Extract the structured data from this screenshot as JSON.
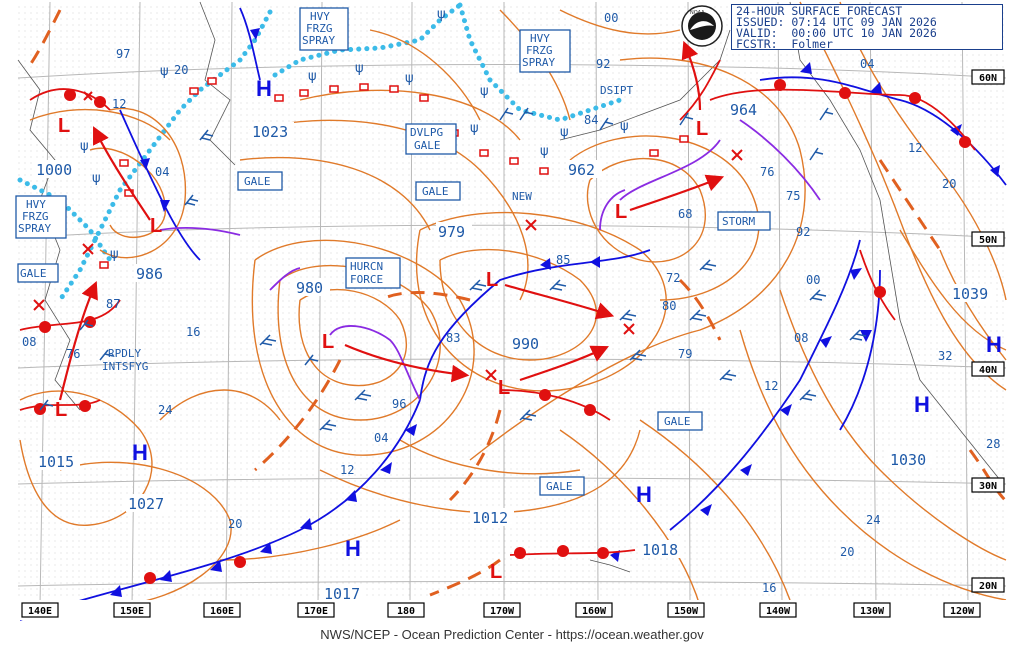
{
  "header": {
    "title": "24-HOUR SURFACE FORECAST",
    "issued": "ISSUED: 07:14 UTC 09 JAN 2026",
    "valid": "VALID:  00:00 UTC 10 JAN 2026",
    "forecaster": "FCSTR:  Folmer"
  },
  "footer": "NWS/NCEP - Ocean Prediction Center - https://ocean.weather.gov",
  "logo_text": "NOAA",
  "lon_ticks": [
    "140E",
    "150E",
    "160E",
    "170E",
    "180",
    "170W",
    "160W",
    "150W",
    "140W",
    "130W",
    "120W"
  ],
  "lat_ticks": [
    "60N",
    "50N",
    "40N",
    "30N",
    "20N"
  ],
  "highs": [
    {
      "letter": "H",
      "pressure": "1023"
    },
    {
      "letter": "H",
      "pressure": "1015"
    },
    {
      "letter": "H",
      "pressure": "1027"
    },
    {
      "letter": "H",
      "pressure": "1017"
    },
    {
      "letter": "H",
      "pressure": "1012"
    },
    {
      "letter": "H",
      "pressure": "1018"
    },
    {
      "letter": "H",
      "pressure": "1030"
    },
    {
      "letter": "H",
      "pressure": "1039"
    }
  ],
  "lows": [
    {
      "letter": "L",
      "pressure": "1000"
    },
    {
      "letter": "L",
      "pressure": "986"
    },
    {
      "letter": "L",
      "pressure": "980"
    },
    {
      "letter": "L",
      "pressure": "979"
    },
    {
      "letter": "L",
      "pressure": "990"
    },
    {
      "letter": "L",
      "pressure": "962"
    },
    {
      "letter": "L",
      "pressure": "964"
    }
  ],
  "warnings": {
    "gale": "GALE",
    "storm": "STORM",
    "hurricane_force": [
      "HURCN",
      "FORCE"
    ],
    "freezing_spray": [
      "HVY",
      "FRZG",
      "SPRAY"
    ],
    "developing_gale": [
      "DVLPG",
      "GALE"
    ],
    "dissipating": "DSIPT",
    "new": "NEW",
    "rapidly_intensifying": [
      "RPDLY",
      "INTSFYG"
    ]
  },
  "isobar_labels": [
    "97",
    "20",
    "12",
    "04",
    "87",
    "76",
    "08",
    "16",
    "24",
    "20",
    "96",
    "04",
    "12",
    "83",
    "85",
    "68",
    "72",
    "80",
    "79",
    "75",
    "76",
    "92",
    "00",
    "08",
    "12",
    "20",
    "24",
    "16",
    "32",
    "28",
    "12",
    "20",
    "04",
    "00",
    "92",
    "84"
  ],
  "colors": {
    "isobar": "#e07a2a",
    "label_blue": "#1f5aa8",
    "cold_front": "#1010e0",
    "warm_front": "#e01010",
    "occluded": "#8a2be2",
    "ice_edge": "#3cbbe8",
    "grid": "#bbbbbb",
    "trough": "#e06020"
  }
}
